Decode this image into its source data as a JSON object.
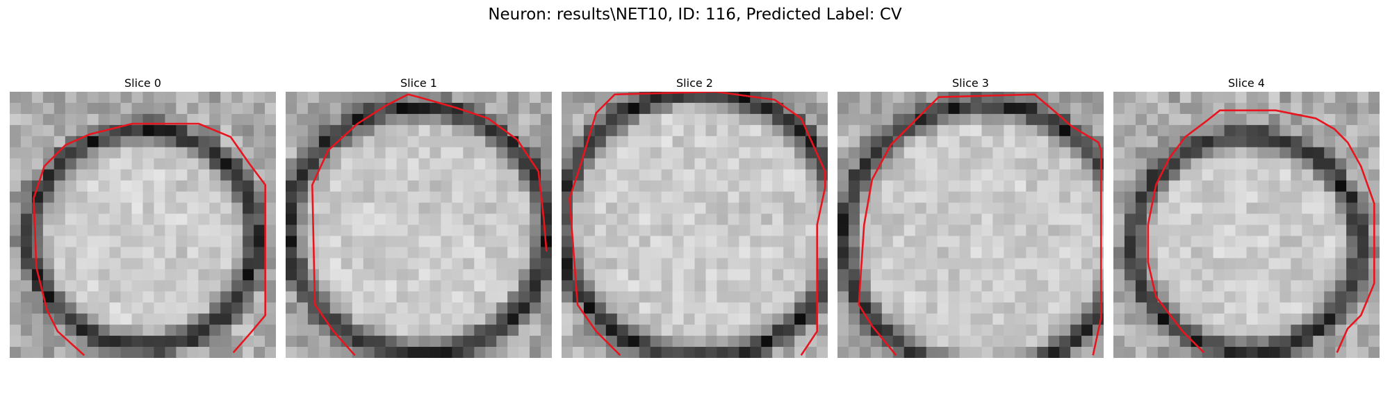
{
  "figure": {
    "title": "Neuron: results\\NET10, ID: 116, Predicted Label: CV",
    "colormap": "gray",
    "contour_color": "#e8141e",
    "grid_size": 24
  },
  "panels": [
    {
      "title": "Slice 0",
      "ring_radius": 0.42,
      "center": [
        0.5,
        0.55
      ],
      "seed": 11,
      "contour": [
        [
          0.28,
          0.99
        ],
        [
          0.18,
          0.9
        ],
        [
          0.14,
          0.82
        ],
        [
          0.1,
          0.66
        ],
        [
          0.09,
          0.4
        ],
        [
          0.13,
          0.28
        ],
        [
          0.21,
          0.2
        ],
        [
          0.3,
          0.16
        ],
        [
          0.46,
          0.12
        ],
        [
          0.71,
          0.12
        ],
        [
          0.83,
          0.17
        ],
        [
          0.9,
          0.27
        ],
        [
          0.96,
          0.35
        ],
        [
          0.96,
          0.84
        ],
        [
          0.91,
          0.9
        ],
        [
          0.84,
          0.98
        ]
      ]
    },
    {
      "title": "Slice 1",
      "ring_radius": 0.48,
      "center": [
        0.5,
        0.52
      ],
      "seed": 23,
      "contour": [
        [
          0.26,
          0.99
        ],
        [
          0.18,
          0.9
        ],
        [
          0.11,
          0.8
        ],
        [
          0.1,
          0.35
        ],
        [
          0.16,
          0.22
        ],
        [
          0.27,
          0.12
        ],
        [
          0.38,
          0.05
        ],
        [
          0.46,
          0.01
        ],
        [
          0.5,
          0.02
        ],
        [
          0.64,
          0.06
        ],
        [
          0.76,
          0.1
        ],
        [
          0.87,
          0.18
        ],
        [
          0.95,
          0.3
        ],
        [
          0.97,
          0.48
        ],
        [
          0.98,
          0.6
        ]
      ]
    },
    {
      "title": "Slice 2",
      "ring_radius": 0.52,
      "center": [
        0.52,
        0.5
      ],
      "seed": 37,
      "contour": [
        [
          0.22,
          0.99
        ],
        [
          0.13,
          0.9
        ],
        [
          0.06,
          0.8
        ],
        [
          0.03,
          0.4
        ],
        [
          0.07,
          0.28
        ],
        [
          0.1,
          0.18
        ],
        [
          0.13,
          0.08
        ],
        [
          0.2,
          0.01
        ],
        [
          0.58,
          0.0
        ],
        [
          0.8,
          0.03
        ],
        [
          0.9,
          0.1
        ],
        [
          0.99,
          0.3
        ],
        [
          0.99,
          0.36
        ],
        [
          0.96,
          0.5
        ],
        [
          0.96,
          0.9
        ],
        [
          0.9,
          0.99
        ]
      ]
    },
    {
      "title": "Slice 3",
      "ring_radius": 0.52,
      "center": [
        0.55,
        0.55
      ],
      "seed": 53,
      "contour": [
        [
          0.22,
          0.99
        ],
        [
          0.13,
          0.88
        ],
        [
          0.08,
          0.8
        ],
        [
          0.1,
          0.5
        ],
        [
          0.13,
          0.33
        ],
        [
          0.2,
          0.2
        ],
        [
          0.3,
          0.1
        ],
        [
          0.38,
          0.02
        ],
        [
          0.74,
          0.01
        ],
        [
          0.8,
          0.06
        ],
        [
          0.88,
          0.13
        ],
        [
          0.98,
          0.19
        ],
        [
          0.99,
          0.22
        ],
        [
          0.99,
          0.85
        ],
        [
          0.96,
          0.99
        ]
      ]
    },
    {
      "title": "Slice 4",
      "ring_radius": 0.42,
      "center": [
        0.5,
        0.57
      ],
      "seed": 71,
      "contour": [
        [
          0.34,
          0.98
        ],
        [
          0.26,
          0.9
        ],
        [
          0.16,
          0.77
        ],
        [
          0.13,
          0.64
        ],
        [
          0.13,
          0.5
        ],
        [
          0.16,
          0.35
        ],
        [
          0.21,
          0.25
        ],
        [
          0.27,
          0.17
        ],
        [
          0.35,
          0.11
        ],
        [
          0.4,
          0.07
        ],
        [
          0.61,
          0.07
        ],
        [
          0.76,
          0.1
        ],
        [
          0.83,
          0.14
        ],
        [
          0.88,
          0.19
        ],
        [
          0.93,
          0.28
        ],
        [
          0.98,
          0.42
        ],
        [
          0.98,
          0.72
        ],
        [
          0.93,
          0.84
        ],
        [
          0.88,
          0.89
        ],
        [
          0.84,
          0.98
        ]
      ]
    }
  ]
}
